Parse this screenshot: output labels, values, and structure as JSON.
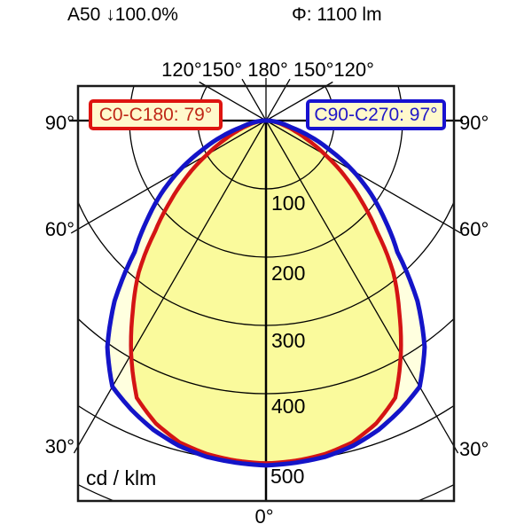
{
  "header": {
    "left": "A50 ↓100.0%",
    "right": "Φ: 1100 lm"
  },
  "legend": {
    "c0": {
      "text": "C0-C180: 79°",
      "color": "#C02818",
      "border": "#DE1410"
    },
    "c90": {
      "text": "C90-C270: 97°",
      "color": "#2018C8",
      "border": "#1812D0"
    }
  },
  "axis_labels": {
    "top": "120°150° 180° 150°120°",
    "left": [
      "90°",
      "60°",
      "30°"
    ],
    "right": [
      "90°",
      "60°",
      "30°"
    ],
    "bottom": "0°"
  },
  "radial_labels": [
    "100",
    "200",
    "300",
    "400",
    "500"
  ],
  "unit_label": "cd / klm",
  "chart_data": {
    "type": "line",
    "subtype": "photometric_polar_diagram",
    "title": "Luminous intensity distribution",
    "units": "cd/klm",
    "luminous_flux": "1100 lm",
    "distribution": "A50 ↓100.0%",
    "symmetric": true,
    "angle_ticks_deg": [
      0,
      30,
      60,
      90,
      120,
      150,
      180
    ],
    "radial_ticks": [
      100,
      200,
      300,
      400,
      500
    ],
    "radial_max_grid": 600,
    "gamma_deg": [
      0,
      5,
      10,
      15,
      20,
      25,
      30,
      35,
      40,
      45,
      50,
      55,
      60,
      65,
      70,
      75,
      80,
      85,
      90
    ],
    "series": [
      {
        "name": "C0-C180",
        "beam_angle_deg": 79,
        "stroke": "#D41414",
        "fill": "#FAFA9C",
        "values": [
          502,
          500,
          496,
          488,
          472,
          448,
          395,
          340,
          290,
          230,
          182,
          140,
          100,
          68,
          45,
          28,
          16,
          7,
          0
        ]
      },
      {
        "name": "C90-C270",
        "beam_angle_deg": 97,
        "stroke": "#1414C8",
        "fill": "#FFFFDF",
        "values": [
          505,
          503,
          500,
          493,
          482,
          467,
          450,
          405,
          345,
          272,
          228,
          188,
          147,
          105,
          70,
          38,
          22,
          10,
          0
        ]
      }
    ]
  }
}
